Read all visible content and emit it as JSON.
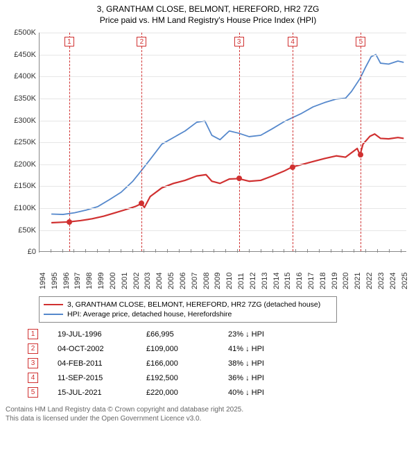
{
  "title": {
    "line1": "3, GRANTHAM CLOSE, BELMONT, HEREFORD, HR2 7ZG",
    "line2": "Price paid vs. HM Land Registry's House Price Index (HPI)"
  },
  "chart": {
    "type": "line",
    "background_color": "#ffffff",
    "grid_color": "#e6e6e6",
    "axis_color": "#888888",
    "x_range": [
      1994,
      2025.5
    ],
    "x_ticks": [
      1994,
      1995,
      1996,
      1997,
      1998,
      1999,
      2000,
      2001,
      2002,
      2003,
      2004,
      2005,
      2006,
      2007,
      2008,
      2009,
      2010,
      2011,
      2012,
      2013,
      2014,
      2015,
      2016,
      2017,
      2018,
      2019,
      2020,
      2021,
      2022,
      2023,
      2024,
      2025
    ],
    "y_range": [
      0,
      500000
    ],
    "y_ticks": [
      0,
      50000,
      100000,
      150000,
      200000,
      250000,
      300000,
      350000,
      400000,
      450000,
      500000
    ],
    "y_tick_labels": [
      "£0",
      "£50K",
      "£100K",
      "£150K",
      "£200K",
      "£250K",
      "£300K",
      "£350K",
      "£400K",
      "£450K",
      "£500K"
    ],
    "series": [
      {
        "name": "property",
        "label": "3, GRANTHAM CLOSE, BELMONT, HEREFORD, HR2 7ZG (detached house)",
        "color": "#d03030",
        "line_width": 2.2,
        "points": [
          [
            1995.0,
            65000
          ],
          [
            1996.5,
            66995
          ],
          [
            1997.5,
            70000
          ],
          [
            1998.5,
            74000
          ],
          [
            1999.5,
            80000
          ],
          [
            2000.5,
            88000
          ],
          [
            2001.5,
            96000
          ],
          [
            2002.2,
            102000
          ],
          [
            2002.76,
            109000
          ],
          [
            2003.0,
            100000
          ],
          [
            2003.5,
            125000
          ],
          [
            2004.5,
            145000
          ],
          [
            2005.5,
            155000
          ],
          [
            2006.5,
            162000
          ],
          [
            2007.5,
            172000
          ],
          [
            2008.3,
            175000
          ],
          [
            2008.8,
            160000
          ],
          [
            2009.5,
            155000
          ],
          [
            2010.3,
            165000
          ],
          [
            2011.1,
            166000
          ],
          [
            2012.0,
            160000
          ],
          [
            2013.0,
            162000
          ],
          [
            2014.0,
            172000
          ],
          [
            2015.0,
            183000
          ],
          [
            2015.7,
            192500
          ],
          [
            2016.5,
            198000
          ],
          [
            2017.5,
            205000
          ],
          [
            2018.5,
            212000
          ],
          [
            2019.5,
            218000
          ],
          [
            2020.3,
            215000
          ],
          [
            2020.8,
            225000
          ],
          [
            2021.3,
            235000
          ],
          [
            2021.54,
            220000
          ],
          [
            2021.8,
            245000
          ],
          [
            2022.4,
            263000
          ],
          [
            2022.8,
            268000
          ],
          [
            2023.3,
            258000
          ],
          [
            2024.0,
            257000
          ],
          [
            2024.8,
            260000
          ],
          [
            2025.3,
            258000
          ]
        ]
      },
      {
        "name": "hpi",
        "label": "HPI: Average price, detached house, Herefordshire",
        "color": "#5588cc",
        "line_width": 1.8,
        "points": [
          [
            1995.0,
            85000
          ],
          [
            1996.0,
            84000
          ],
          [
            1997.0,
            88000
          ],
          [
            1998.0,
            94000
          ],
          [
            1999.0,
            102000
          ],
          [
            2000.0,
            118000
          ],
          [
            2001.0,
            135000
          ],
          [
            2002.0,
            160000
          ],
          [
            2002.76,
            185000
          ],
          [
            2003.5,
            210000
          ],
          [
            2004.5,
            245000
          ],
          [
            2005.5,
            260000
          ],
          [
            2006.5,
            275000
          ],
          [
            2007.5,
            295000
          ],
          [
            2008.2,
            298000
          ],
          [
            2008.8,
            265000
          ],
          [
            2009.5,
            255000
          ],
          [
            2010.3,
            275000
          ],
          [
            2011.1,
            270000
          ],
          [
            2012.0,
            262000
          ],
          [
            2013.0,
            265000
          ],
          [
            2014.0,
            280000
          ],
          [
            2015.0,
            296000
          ],
          [
            2015.7,
            305000
          ],
          [
            2016.5,
            315000
          ],
          [
            2017.5,
            330000
          ],
          [
            2018.5,
            340000
          ],
          [
            2019.5,
            348000
          ],
          [
            2020.3,
            350000
          ],
          [
            2020.8,
            365000
          ],
          [
            2021.54,
            395000
          ],
          [
            2022.0,
            420000
          ],
          [
            2022.5,
            445000
          ],
          [
            2022.9,
            450000
          ],
          [
            2023.3,
            430000
          ],
          [
            2024.0,
            428000
          ],
          [
            2024.8,
            435000
          ],
          [
            2025.3,
            432000
          ]
        ]
      }
    ],
    "markers": [
      {
        "n": "1",
        "x": 1996.55,
        "y": 66995
      },
      {
        "n": "2",
        "x": 2002.76,
        "y": 109000
      },
      {
        "n": "3",
        "x": 2011.1,
        "y": 166000
      },
      {
        "n": "4",
        "x": 2015.7,
        "y": 192500
      },
      {
        "n": "5",
        "x": 2021.54,
        "y": 220000
      }
    ],
    "marker_box_color": "#d03030",
    "marker_dashed_color": "#d03030"
  },
  "legend": {
    "items": [
      {
        "color": "#d03030",
        "width": 2.5,
        "label": "3, GRANTHAM CLOSE, BELMONT, HEREFORD, HR2 7ZG (detached house)"
      },
      {
        "color": "#5588cc",
        "width": 2,
        "label": "HPI: Average price, detached house, Herefordshire"
      }
    ]
  },
  "table": {
    "rows": [
      {
        "n": "1",
        "date": "19-JUL-1996",
        "price": "£66,995",
        "pct": "23% ↓ HPI"
      },
      {
        "n": "2",
        "date": "04-OCT-2002",
        "price": "£109,000",
        "pct": "41% ↓ HPI"
      },
      {
        "n": "3",
        "date": "04-FEB-2011",
        "price": "£166,000",
        "pct": "38% ↓ HPI"
      },
      {
        "n": "4",
        "date": "11-SEP-2015",
        "price": "£192,500",
        "pct": "36% ↓ HPI"
      },
      {
        "n": "5",
        "date": "15-JUL-2021",
        "price": "£220,000",
        "pct": "40% ↓ HPI"
      }
    ]
  },
  "footer": {
    "line1": "Contains HM Land Registry data © Crown copyright and database right 2025.",
    "line2": "This data is licensed under the Open Government Licence v3.0."
  }
}
